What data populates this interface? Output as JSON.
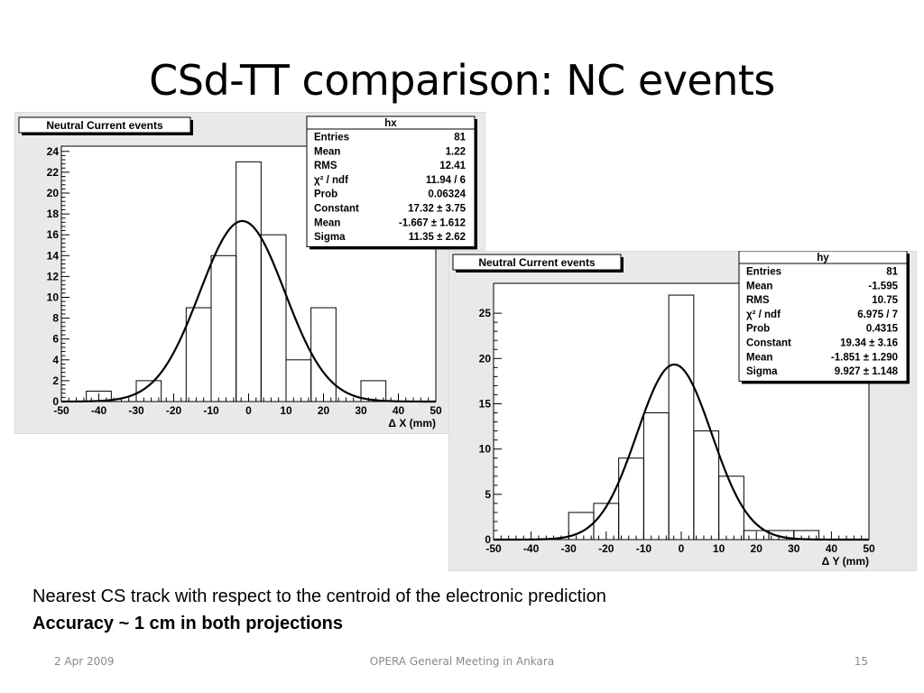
{
  "slide": {
    "title": "CSd-TT comparison: NC events",
    "caption_line1": "Nearest CS track with respect to the centroid of the electronic prediction",
    "caption_line2": "Accuracy ~ 1 cm in both projections",
    "footer_date": "2 Apr 2009",
    "footer_center": "OPERA General Meeting in Ankara",
    "footer_page": "15"
  },
  "chart_data": [
    {
      "type": "bar",
      "id": "hx",
      "title": "Neutral Current events",
      "xlabel": "Δ X (mm)",
      "xlim": [
        -50,
        50
      ],
      "ylim": [
        0,
        24.5
      ],
      "x_ticks": [
        -50,
        -40,
        -30,
        -20,
        -10,
        0,
        10,
        20,
        30,
        40,
        50
      ],
      "y_ticks": [
        0,
        2,
        4,
        6,
        8,
        10,
        12,
        14,
        16,
        18,
        20,
        22,
        24
      ],
      "bin_edges": [
        -50,
        -43.33,
        -36.67,
        -30,
        -23.33,
        -16.67,
        -10,
        -3.33,
        3.33,
        10,
        16.67,
        23.33,
        30,
        36.67,
        43.33,
        50
      ],
      "values": [
        0,
        1,
        0,
        2,
        0,
        9,
        14,
        23,
        16,
        4,
        9,
        0,
        2,
        0,
        0
      ],
      "fit": {
        "type": "gaussian",
        "constant": 17.32,
        "mean": -1.667,
        "sigma": 11.35
      },
      "stats_box": {
        "title": "hx",
        "rows": [
          {
            "label": "Entries",
            "value": "81"
          },
          {
            "label": "Mean",
            "value": "1.22"
          },
          {
            "label": "RMS",
            "value": "12.41"
          },
          {
            "label": "χ² / ndf",
            "value": "11.94 / 6"
          },
          {
            "label": "Prob",
            "value": "0.06324"
          },
          {
            "label": "Constant",
            "value": "17.32 ± 3.75"
          },
          {
            "label": "Mean",
            "value": "-1.667 ± 1.612"
          },
          {
            "label": "Sigma",
            "value": "11.35 ± 2.62"
          }
        ]
      }
    },
    {
      "type": "bar",
      "id": "hy",
      "title": "Neutral Current events",
      "xlabel": "Δ Y (mm)",
      "xlim": [
        -50,
        50
      ],
      "ylim": [
        0,
        28.3
      ],
      "x_ticks": [
        -50,
        -40,
        -30,
        -20,
        -10,
        0,
        10,
        20,
        30,
        40,
        50
      ],
      "y_ticks": [
        0,
        5,
        10,
        15,
        20,
        25
      ],
      "bin_edges": [
        -50,
        -43.33,
        -36.67,
        -30,
        -23.33,
        -16.67,
        -10,
        -3.33,
        3.33,
        10,
        16.67,
        23.33,
        30,
        36.67,
        43.33,
        50
      ],
      "values": [
        0,
        0,
        0,
        3,
        4,
        9,
        14,
        27,
        12,
        7,
        1,
        1,
        1,
        0,
        0
      ],
      "fit": {
        "type": "gaussian",
        "constant": 19.34,
        "mean": -1.851,
        "sigma": 9.927
      },
      "stats_box": {
        "title": "hy",
        "rows": [
          {
            "label": "Entries",
            "value": "81"
          },
          {
            "label": "Mean",
            "value": "-1.595"
          },
          {
            "label": "RMS",
            "value": "10.75"
          },
          {
            "label": "χ² / ndf",
            "value": "6.975 / 7"
          },
          {
            "label": "Prob",
            "value": "0.4315"
          },
          {
            "label": "Constant",
            "value": "19.34 ± 3.16"
          },
          {
            "label": "Mean",
            "value": "-1.851 ± 1.290"
          },
          {
            "label": "Sigma",
            "value": "9.927 ± 1.148"
          }
        ]
      }
    }
  ]
}
